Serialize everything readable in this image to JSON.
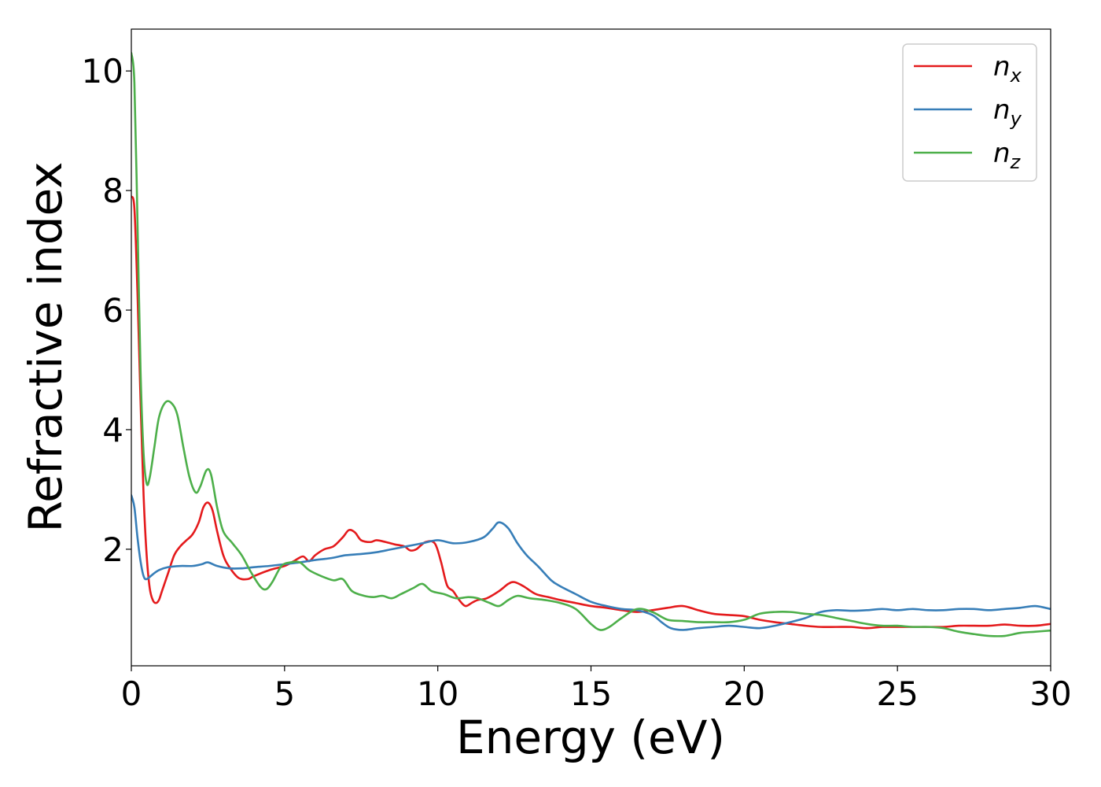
{
  "chart_data": {
    "type": "line",
    "xlabel": "Energy (eV)",
    "ylabel": "Refractive index",
    "xlim": [
      0,
      30
    ],
    "ylim": [
      0.05,
      10.7
    ],
    "xticks": [
      0,
      5,
      10,
      15,
      20,
      25,
      30
    ],
    "yticks": [
      2,
      4,
      6,
      8,
      10
    ],
    "grid": false,
    "legend_position": "top-right",
    "series": [
      {
        "key": "nx",
        "name": "n",
        "subscript": "x",
        "color": "#e41a1c",
        "points": [
          [
            0,
            7.9
          ],
          [
            0.1,
            7.7
          ],
          [
            0.2,
            6.3
          ],
          [
            0.3,
            4.5
          ],
          [
            0.4,
            2.9
          ],
          [
            0.5,
            1.9
          ],
          [
            0.6,
            1.35
          ],
          [
            0.7,
            1.15
          ],
          [
            0.8,
            1.1
          ],
          [
            0.9,
            1.15
          ],
          [
            1.0,
            1.3
          ],
          [
            1.2,
            1.6
          ],
          [
            1.4,
            1.9
          ],
          [
            1.6,
            2.05
          ],
          [
            1.8,
            2.15
          ],
          [
            2.0,
            2.25
          ],
          [
            2.2,
            2.45
          ],
          [
            2.35,
            2.7
          ],
          [
            2.5,
            2.78
          ],
          [
            2.65,
            2.65
          ],
          [
            2.8,
            2.3
          ],
          [
            3.0,
            1.9
          ],
          [
            3.2,
            1.7
          ],
          [
            3.5,
            1.52
          ],
          [
            3.8,
            1.5
          ],
          [
            4.0,
            1.55
          ],
          [
            4.5,
            1.65
          ],
          [
            5.0,
            1.72
          ],
          [
            5.3,
            1.8
          ],
          [
            5.6,
            1.88
          ],
          [
            5.8,
            1.8
          ],
          [
            6.0,
            1.9
          ],
          [
            6.3,
            2.0
          ],
          [
            6.6,
            2.05
          ],
          [
            6.9,
            2.2
          ],
          [
            7.1,
            2.32
          ],
          [
            7.3,
            2.28
          ],
          [
            7.5,
            2.15
          ],
          [
            7.8,
            2.12
          ],
          [
            8.0,
            2.15
          ],
          [
            8.3,
            2.12
          ],
          [
            8.6,
            2.08
          ],
          [
            8.9,
            2.05
          ],
          [
            9.1,
            1.98
          ],
          [
            9.3,
            2.0
          ],
          [
            9.6,
            2.12
          ],
          [
            9.9,
            2.1
          ],
          [
            10.1,
            1.8
          ],
          [
            10.3,
            1.4
          ],
          [
            10.5,
            1.3
          ],
          [
            10.7,
            1.15
          ],
          [
            10.9,
            1.05
          ],
          [
            11.1,
            1.1
          ],
          [
            11.3,
            1.15
          ],
          [
            11.6,
            1.18
          ],
          [
            12.0,
            1.3
          ],
          [
            12.3,
            1.42
          ],
          [
            12.5,
            1.45
          ],
          [
            12.8,
            1.38
          ],
          [
            13.2,
            1.25
          ],
          [
            13.6,
            1.2
          ],
          [
            14.0,
            1.15
          ],
          [
            14.5,
            1.1
          ],
          [
            15.0,
            1.05
          ],
          [
            15.5,
            1.02
          ],
          [
            16.0,
            0.98
          ],
          [
            16.5,
            0.95
          ],
          [
            17.0,
            0.98
          ],
          [
            17.5,
            1.02
          ],
          [
            18.0,
            1.05
          ],
          [
            18.5,
            0.98
          ],
          [
            19.0,
            0.92
          ],
          [
            19.5,
            0.9
          ],
          [
            20.0,
            0.88
          ],
          [
            20.5,
            0.82
          ],
          [
            21.0,
            0.78
          ],
          [
            21.5,
            0.75
          ],
          [
            22.0,
            0.72
          ],
          [
            22.5,
            0.7
          ],
          [
            23.0,
            0.7
          ],
          [
            23.5,
            0.7
          ],
          [
            24.0,
            0.68
          ],
          [
            24.5,
            0.7
          ],
          [
            25.0,
            0.7
          ],
          [
            25.5,
            0.7
          ],
          [
            26.0,
            0.7
          ],
          [
            26.5,
            0.7
          ],
          [
            27.0,
            0.72
          ],
          [
            27.5,
            0.72
          ],
          [
            28.0,
            0.72
          ],
          [
            28.5,
            0.74
          ],
          [
            29.0,
            0.72
          ],
          [
            29.5,
            0.72
          ],
          [
            30.0,
            0.75
          ]
        ]
      },
      {
        "key": "ny",
        "name": "n",
        "subscript": "y",
        "color": "#377eb8",
        "points": [
          [
            0,
            2.9
          ],
          [
            0.1,
            2.7
          ],
          [
            0.2,
            2.2
          ],
          [
            0.3,
            1.8
          ],
          [
            0.4,
            1.55
          ],
          [
            0.5,
            1.5
          ],
          [
            0.7,
            1.58
          ],
          [
            0.9,
            1.65
          ],
          [
            1.2,
            1.7
          ],
          [
            1.6,
            1.72
          ],
          [
            2.0,
            1.72
          ],
          [
            2.3,
            1.75
          ],
          [
            2.5,
            1.78
          ],
          [
            2.8,
            1.72
          ],
          [
            3.2,
            1.68
          ],
          [
            3.6,
            1.68
          ],
          [
            4.0,
            1.7
          ],
          [
            4.5,
            1.72
          ],
          [
            5.0,
            1.75
          ],
          [
            5.5,
            1.78
          ],
          [
            6.0,
            1.82
          ],
          [
            6.5,
            1.85
          ],
          [
            7.0,
            1.9
          ],
          [
            7.5,
            1.92
          ],
          [
            8.0,
            1.95
          ],
          [
            8.5,
            2.0
          ],
          [
            9.0,
            2.05
          ],
          [
            9.5,
            2.1
          ],
          [
            10.0,
            2.15
          ],
          [
            10.5,
            2.1
          ],
          [
            11.0,
            2.12
          ],
          [
            11.5,
            2.2
          ],
          [
            11.8,
            2.35
          ],
          [
            12.0,
            2.45
          ],
          [
            12.3,
            2.35
          ],
          [
            12.6,
            2.1
          ],
          [
            12.9,
            1.9
          ],
          [
            13.3,
            1.7
          ],
          [
            13.7,
            1.48
          ],
          [
            14.0,
            1.38
          ],
          [
            14.5,
            1.25
          ],
          [
            15.0,
            1.12
          ],
          [
            15.5,
            1.05
          ],
          [
            16.0,
            1.0
          ],
          [
            16.5,
            0.98
          ],
          [
            17.0,
            0.9
          ],
          [
            17.3,
            0.78
          ],
          [
            17.6,
            0.68
          ],
          [
            18.0,
            0.65
          ],
          [
            18.5,
            0.68
          ],
          [
            19.0,
            0.7
          ],
          [
            19.5,
            0.72
          ],
          [
            20.0,
            0.7
          ],
          [
            20.5,
            0.68
          ],
          [
            21.0,
            0.72
          ],
          [
            21.5,
            0.78
          ],
          [
            22.0,
            0.85
          ],
          [
            22.5,
            0.95
          ],
          [
            23.0,
            0.98
          ],
          [
            23.5,
            0.97
          ],
          [
            24.0,
            0.98
          ],
          [
            24.5,
            1.0
          ],
          [
            25.0,
            0.98
          ],
          [
            25.5,
            1.0
          ],
          [
            26.0,
            0.98
          ],
          [
            26.5,
            0.98
          ],
          [
            27.0,
            1.0
          ],
          [
            27.5,
            1.0
          ],
          [
            28.0,
            0.98
          ],
          [
            28.5,
            1.0
          ],
          [
            29.0,
            1.02
          ],
          [
            29.5,
            1.05
          ],
          [
            30.0,
            1.0
          ]
        ]
      },
      {
        "key": "nz",
        "name": "n",
        "subscript": "z",
        "color": "#4daf4a",
        "points": [
          [
            0,
            10.3
          ],
          [
            0.1,
            9.8
          ],
          [
            0.2,
            7.5
          ],
          [
            0.3,
            5.0
          ],
          [
            0.4,
            3.6
          ],
          [
            0.5,
            3.1
          ],
          [
            0.6,
            3.2
          ],
          [
            0.75,
            3.7
          ],
          [
            0.9,
            4.2
          ],
          [
            1.1,
            4.45
          ],
          [
            1.3,
            4.45
          ],
          [
            1.5,
            4.25
          ],
          [
            1.7,
            3.7
          ],
          [
            1.9,
            3.2
          ],
          [
            2.1,
            2.95
          ],
          [
            2.25,
            3.05
          ],
          [
            2.45,
            3.32
          ],
          [
            2.6,
            3.25
          ],
          [
            2.8,
            2.7
          ],
          [
            3.0,
            2.3
          ],
          [
            3.3,
            2.1
          ],
          [
            3.6,
            1.9
          ],
          [
            3.9,
            1.62
          ],
          [
            4.2,
            1.38
          ],
          [
            4.4,
            1.33
          ],
          [
            4.6,
            1.45
          ],
          [
            4.9,
            1.72
          ],
          [
            5.2,
            1.78
          ],
          [
            5.5,
            1.78
          ],
          [
            5.8,
            1.65
          ],
          [
            6.2,
            1.55
          ],
          [
            6.6,
            1.48
          ],
          [
            6.9,
            1.5
          ],
          [
            7.2,
            1.3
          ],
          [
            7.6,
            1.22
          ],
          [
            7.9,
            1.2
          ],
          [
            8.2,
            1.22
          ],
          [
            8.5,
            1.18
          ],
          [
            8.8,
            1.25
          ],
          [
            9.2,
            1.35
          ],
          [
            9.5,
            1.42
          ],
          [
            9.8,
            1.3
          ],
          [
            10.2,
            1.25
          ],
          [
            10.6,
            1.18
          ],
          [
            11.0,
            1.2
          ],
          [
            11.3,
            1.18
          ],
          [
            11.7,
            1.1
          ],
          [
            12.0,
            1.05
          ],
          [
            12.3,
            1.15
          ],
          [
            12.6,
            1.22
          ],
          [
            13.0,
            1.18
          ],
          [
            13.5,
            1.15
          ],
          [
            14.0,
            1.1
          ],
          [
            14.5,
            1.0
          ],
          [
            15.0,
            0.75
          ],
          [
            15.3,
            0.65
          ],
          [
            15.6,
            0.7
          ],
          [
            16.0,
            0.85
          ],
          [
            16.5,
            1.0
          ],
          [
            17.0,
            0.95
          ],
          [
            17.5,
            0.82
          ],
          [
            18.0,
            0.8
          ],
          [
            18.5,
            0.78
          ],
          [
            19.0,
            0.78
          ],
          [
            19.5,
            0.78
          ],
          [
            20.0,
            0.82
          ],
          [
            20.5,
            0.92
          ],
          [
            21.0,
            0.95
          ],
          [
            21.5,
            0.95
          ],
          [
            22.0,
            0.92
          ],
          [
            22.5,
            0.9
          ],
          [
            23.0,
            0.85
          ],
          [
            23.5,
            0.8
          ],
          [
            24.0,
            0.75
          ],
          [
            24.5,
            0.72
          ],
          [
            25.0,
            0.72
          ],
          [
            25.5,
            0.7
          ],
          [
            26.0,
            0.7
          ],
          [
            26.5,
            0.68
          ],
          [
            27.0,
            0.62
          ],
          [
            27.5,
            0.58
          ],
          [
            28.0,
            0.55
          ],
          [
            28.5,
            0.55
          ],
          [
            29.0,
            0.6
          ],
          [
            29.5,
            0.62
          ],
          [
            30.0,
            0.64
          ]
        ]
      }
    ]
  }
}
